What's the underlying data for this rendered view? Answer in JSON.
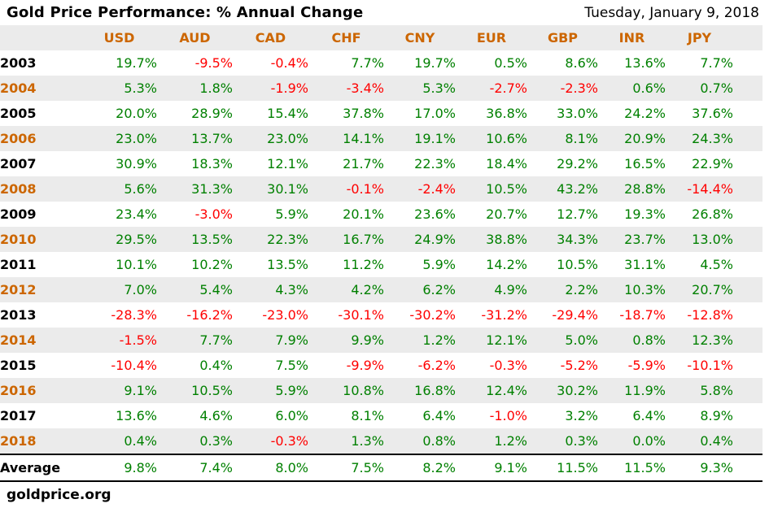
{
  "header": {
    "title": "Gold Price Performance: % Annual Change",
    "date": "Tuesday, January 9, 2018"
  },
  "footer": {
    "brand": "goldprice.org"
  },
  "colors": {
    "header_text": "#CC6600",
    "year_highlight": "#CC6600",
    "year_normal": "#000000",
    "positive": "#008000",
    "negative": "#FF0000",
    "stripe": "#EBEBEB"
  },
  "chart_data": {
    "type": "table",
    "title": "Gold Price Performance: % Annual Change",
    "unit": "%",
    "columns": [
      "USD",
      "AUD",
      "CAD",
      "CHF",
      "CNY",
      "EUR",
      "GBP",
      "INR",
      "JPY"
    ],
    "rows": [
      {
        "label": "2003",
        "values": [
          19.7,
          -9.5,
          -0.4,
          7.7,
          19.7,
          0.5,
          8.6,
          13.6,
          7.7
        ]
      },
      {
        "label": "2004",
        "values": [
          5.3,
          1.8,
          -1.9,
          -3.4,
          5.3,
          -2.7,
          -2.3,
          0.6,
          0.7
        ]
      },
      {
        "label": "2005",
        "values": [
          20.0,
          28.9,
          15.4,
          37.8,
          17.0,
          36.8,
          33.0,
          24.2,
          37.6
        ]
      },
      {
        "label": "2006",
        "values": [
          23.0,
          13.7,
          23.0,
          14.1,
          19.1,
          10.6,
          8.1,
          20.9,
          24.3
        ]
      },
      {
        "label": "2007",
        "values": [
          30.9,
          18.3,
          12.1,
          21.7,
          22.3,
          18.4,
          29.2,
          16.5,
          22.9
        ]
      },
      {
        "label": "2008",
        "values": [
          5.6,
          31.3,
          30.1,
          -0.1,
          -2.4,
          10.5,
          43.2,
          28.8,
          -14.4
        ]
      },
      {
        "label": "2009",
        "values": [
          23.4,
          -3.0,
          5.9,
          20.1,
          23.6,
          20.7,
          12.7,
          19.3,
          26.8
        ]
      },
      {
        "label": "2010",
        "values": [
          29.5,
          13.5,
          22.3,
          16.7,
          24.9,
          38.8,
          34.3,
          23.7,
          13.0
        ]
      },
      {
        "label": "2011",
        "values": [
          10.1,
          10.2,
          13.5,
          11.2,
          5.9,
          14.2,
          10.5,
          31.1,
          4.5
        ]
      },
      {
        "label": "2012",
        "values": [
          7.0,
          5.4,
          4.3,
          4.2,
          6.2,
          4.9,
          2.2,
          10.3,
          20.7
        ]
      },
      {
        "label": "2013",
        "values": [
          -28.3,
          -16.2,
          -23.0,
          -30.1,
          -30.2,
          -31.2,
          -29.4,
          -18.7,
          -12.8
        ]
      },
      {
        "label": "2014",
        "values": [
          -1.5,
          7.7,
          7.9,
          9.9,
          1.2,
          12.1,
          5.0,
          0.8,
          12.3
        ]
      },
      {
        "label": "2015",
        "values": [
          -10.4,
          0.4,
          7.5,
          -9.9,
          -6.2,
          -0.3,
          -5.2,
          -5.9,
          -10.1
        ]
      },
      {
        "label": "2016",
        "values": [
          9.1,
          10.5,
          5.9,
          10.8,
          16.8,
          12.4,
          30.2,
          11.9,
          5.8
        ]
      },
      {
        "label": "2017",
        "values": [
          13.6,
          4.6,
          6.0,
          8.1,
          6.4,
          -1.0,
          3.2,
          6.4,
          8.9
        ]
      },
      {
        "label": "2018",
        "values": [
          0.4,
          0.3,
          -0.3,
          1.3,
          0.8,
          1.2,
          0.3,
          0.0,
          0.4
        ]
      },
      {
        "label": "Average",
        "values": [
          9.8,
          7.4,
          8.0,
          7.5,
          8.2,
          9.1,
          11.5,
          11.5,
          9.3
        ]
      }
    ]
  }
}
